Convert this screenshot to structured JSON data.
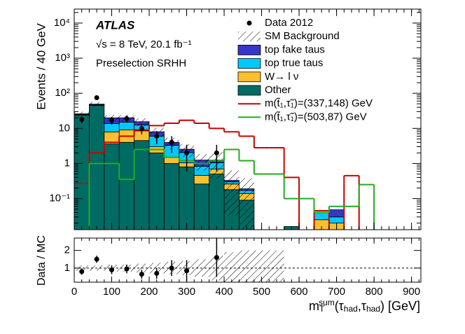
{
  "chart_data": {
    "type": "stacked_histogram",
    "annotations": {
      "experiment": "ATLAS",
      "energy": "√s = 8 TeV, 20.1 fb⁻¹",
      "selection": "Preselection SRHH"
    },
    "ylabel": "Events / 40 GeV",
    "xlabel_parts": [
      "m",
      "T",
      "sum",
      "(τ",
      "had",
      ",τ",
      "had",
      ") [GeV]"
    ],
    "bins": [
      0,
      40,
      80,
      120,
      160,
      200,
      240,
      280,
      320,
      360,
      400,
      440,
      480,
      520,
      560,
      600,
      640,
      680,
      720,
      760,
      800,
      840,
      880,
      920
    ],
    "xlim": [
      0,
      925
    ],
    "xticks": [
      0,
      100,
      200,
      300,
      400,
      500,
      600,
      700,
      800,
      900
    ],
    "log_y": true,
    "ylim": [
      0.013,
      25000
    ],
    "yticks": [
      {
        "value": 0.1,
        "label": "10⁻¹"
      },
      1,
      10,
      {
        "value": 100,
        "label": "10²"
      },
      {
        "value": 1000,
        "label": "10³"
      },
      {
        "value": 10000,
        "label": "10⁴"
      }
    ],
    "series": [
      {
        "name": "top fake taus",
        "color": "#3636c8",
        "values": [
          0.5,
          1,
          6.2,
          5,
          3,
          2,
          0.7,
          0.5,
          0.42,
          0.2,
          0.03,
          0.02,
          0,
          0,
          0,
          0,
          0,
          0.018,
          0,
          0,
          0,
          0,
          0
        ]
      },
      {
        "name": "top true taus",
        "color": "#00c8ff",
        "values": [
          1,
          2,
          5.9,
          6,
          4,
          3,
          1.8,
          1,
          0.37,
          0.35,
          0.04,
          0.03,
          0,
          0,
          0,
          0,
          0.015,
          0.01,
          0,
          0,
          0,
          0,
          0
        ]
      },
      {
        "name": "W→ l ν",
        "color": "#fbc02d",
        "values": [
          0.5,
          1,
          4.3,
          5,
          4,
          1,
          0.5,
          0.25,
          0.2,
          0.2,
          0.08,
          0.05,
          0,
          0,
          0,
          0,
          0.025,
          0.02,
          0,
          0,
          0,
          0,
          0
        ]
      },
      {
        "name": "Other",
        "color": "#006b63",
        "values": [
          24,
          45,
          3.6,
          4,
          4.5,
          2,
          1,
          0.8,
          0.26,
          0.5,
          0.18,
          0.09,
          0,
          0,
          0.016,
          0,
          0,
          0,
          0,
          0,
          0,
          0,
          0
        ]
      }
    ],
    "signals": [
      {
        "name": "m(t̃₁,τ̃₁)=(337,148) GeV",
        "color": "#cc0000",
        "values": [
          0.27,
          2,
          4,
          6,
          9,
          12,
          14,
          17,
          14,
          10,
          8,
          6,
          2.8,
          2.8,
          0.4,
          0,
          0.045,
          0,
          0.45,
          0,
          0,
          0,
          0
        ]
      },
      {
        "name": "m(t̃₁,τ̃₁)=(503,87) GeV",
        "color": "#22aa22",
        "values": [
          0,
          1,
          1,
          0.35,
          2.5,
          2.5,
          1.5,
          1.2,
          1,
          1.2,
          2.5,
          1.2,
          0.5,
          0.5,
          0.1,
          0.1,
          0.04,
          0.06,
          0.06,
          0.25,
          0,
          0,
          0
        ]
      }
    ],
    "data": {
      "name": "Data 2012",
      "values": [
        18,
        75,
        17,
        19,
        10,
        6,
        4,
        2,
        null,
        2,
        null,
        null,
        null,
        null,
        null,
        null,
        null,
        null,
        null,
        null,
        null,
        null,
        null
      ],
      "errors": [
        4.2,
        8.7,
        4.1,
        4.4,
        3.2,
        2.4,
        2,
        1.4,
        null,
        1.4,
        null,
        null,
        null,
        null,
        null,
        null,
        null,
        null,
        null,
        null,
        null,
        null,
        null
      ]
    },
    "background": {
      "name": "SM Background",
      "rel_uncertainty": [
        0.15,
        0.15,
        0.2,
        0.2,
        0.25,
        0.3,
        0.35,
        0.4,
        0.5,
        0.7,
        0.9,
        1,
        1,
        1,
        null,
        null,
        null,
        null,
        null,
        null,
        null,
        null,
        null
      ]
    },
    "ratio": {
      "ylabel": "Data / MC",
      "ylim": [
        0.2,
        2.7
      ],
      "yticks": [
        1,
        2
      ],
      "reference": 1,
      "values": [
        0.8,
        1.5,
        0.9,
        0.95,
        0.65,
        0.7,
        1.0,
        0.85,
        null,
        1.6,
        null,
        null,
        null,
        null,
        null,
        null,
        null,
        null,
        null,
        null,
        null,
        null,
        null
      ],
      "errors": [
        0.18,
        0.2,
        0.25,
        0.25,
        0.25,
        0.3,
        0.45,
        0.6,
        null,
        1.1,
        null,
        null,
        null,
        null,
        null,
        null,
        null,
        null,
        null,
        null,
        null,
        null,
        null
      ]
    }
  }
}
